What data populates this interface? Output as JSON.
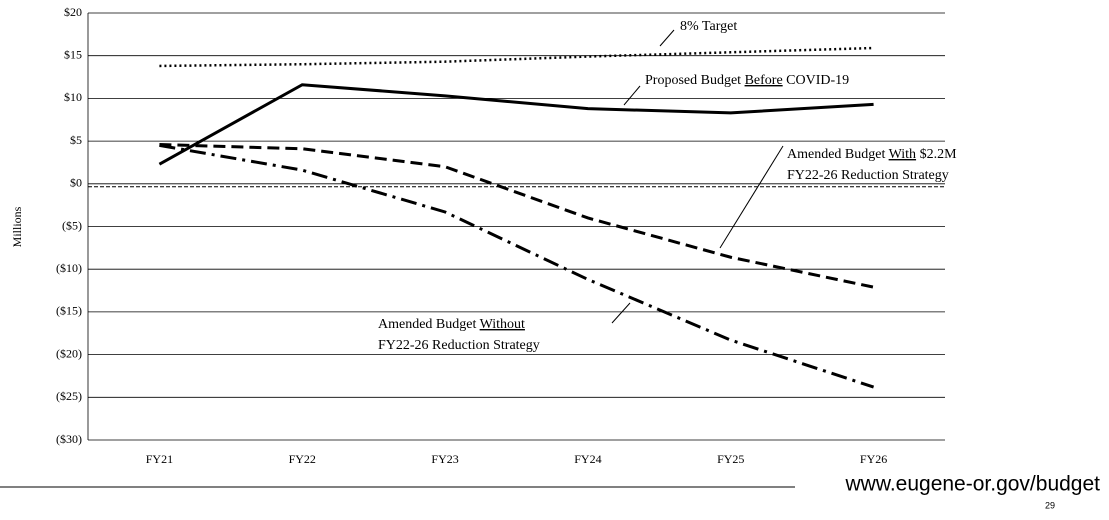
{
  "chart_data": {
    "type": "line",
    "ylabel": "Millions",
    "categories": [
      "FY21",
      "FY22",
      "FY23",
      "FY24",
      "FY25",
      "FY26"
    ],
    "ylim": [
      -30,
      20
    ],
    "yticks": [
      {
        "value": 20,
        "label": "$20"
      },
      {
        "value": 15,
        "label": "$15"
      },
      {
        "value": 10,
        "label": "$10"
      },
      {
        "value": 5,
        "label": "$5"
      },
      {
        "value": 0,
        "label": "$0"
      },
      {
        "value": -5,
        "label": "($5)"
      },
      {
        "value": -10,
        "label": "($10)"
      },
      {
        "value": -15,
        "label": "($15)"
      },
      {
        "value": -20,
        "label": "($20)"
      },
      {
        "value": -25,
        "label": "($25)"
      },
      {
        "value": -30,
        "label": "($30)"
      }
    ],
    "grid": true,
    "series": [
      {
        "label": [
          [
            "8% Target"
          ]
        ],
        "color": "#000000",
        "style": "dotted",
        "values": [
          13.8,
          14.0,
          14.3,
          14.9,
          15.4,
          15.9
        ]
      },
      {
        "label": [
          [
            "Proposed Budget ",
            "Before",
            " COVID-19"
          ]
        ],
        "color": "#000000",
        "style": "solid",
        "values": [
          2.3,
          11.6,
          10.3,
          8.8,
          8.3,
          9.3
        ]
      },
      {
        "label": [
          [
            "Amended Budget ",
            "With",
            " $2.2M"
          ],
          [
            "FY22-26 Reduction Strategy"
          ]
        ],
        "color": "#000000",
        "style": "dashed",
        "values": [
          4.6,
          4.1,
          2.0,
          -4.0,
          -8.6,
          -12.1
        ]
      },
      {
        "label": [
          [
            "Amended Budget ",
            "Without"
          ],
          [
            "FY22-26 Reduction Strategy"
          ]
        ],
        "color": "#000000",
        "style": "dashdot",
        "values": [
          4.5,
          1.6,
          -3.3,
          -11.2,
          -18.3,
          -23.8
        ]
      }
    ]
  },
  "footer": {
    "url": "www.eugene-or.gov/budget",
    "page": "29"
  }
}
